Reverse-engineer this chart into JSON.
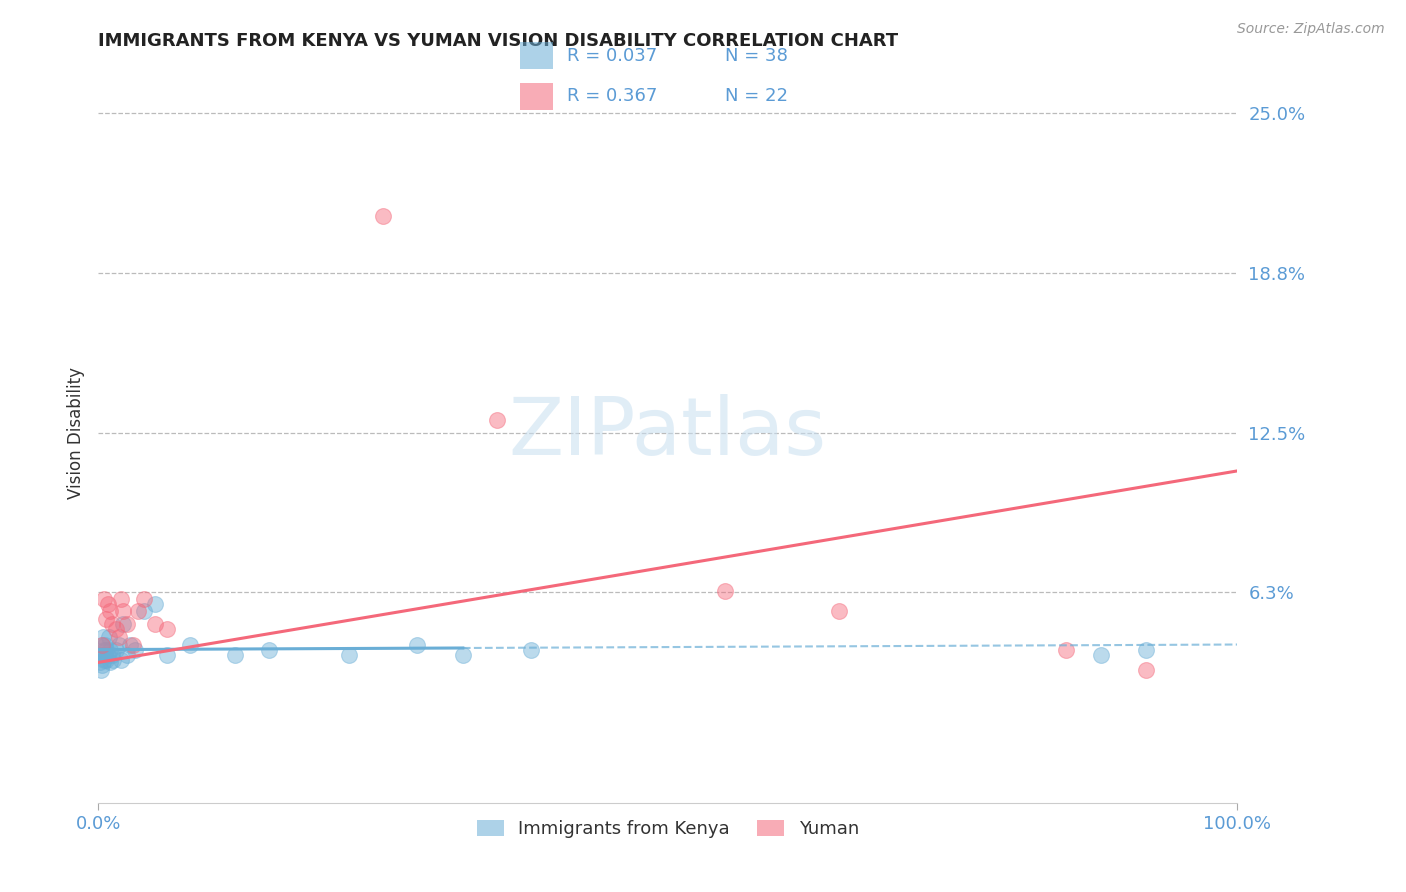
{
  "title": "IMMIGRANTS FROM KENYA VS YUMAN VISION DISABILITY CORRELATION CHART",
  "source": "Source: ZipAtlas.com",
  "ylabel": "Vision Disability",
  "legend_label1": "Immigrants from Kenya",
  "legend_label2": "Yuman",
  "legend_r1": "R = 0.037",
  "legend_n1": "N = 38",
  "legend_r2": "R = 0.367",
  "legend_n2": "N = 22",
  "ytick_vals": [
    0.0,
    0.0625,
    0.125,
    0.1875,
    0.25
  ],
  "ytick_labels": [
    "",
    "6.3%",
    "12.5%",
    "18.8%",
    "25.0%"
  ],
  "xlim": [
    0.0,
    1.0
  ],
  "ylim": [
    -0.02,
    0.27
  ],
  "color_blue": "#6aaed6",
  "color_pink": "#f4687a",
  "color_title": "#222222",
  "color_axis_blue": "#5b9bd5",
  "color_grid": "#bbbbbb",
  "background_color": "#ffffff",
  "kenya_x": [
    0.001,
    0.002,
    0.002,
    0.003,
    0.003,
    0.004,
    0.004,
    0.005,
    0.005,
    0.006,
    0.006,
    0.007,
    0.007,
    0.008,
    0.009,
    0.01,
    0.01,
    0.012,
    0.013,
    0.015,
    0.018,
    0.02,
    0.022,
    0.025,
    0.028,
    0.032,
    0.04,
    0.05,
    0.06,
    0.08,
    0.12,
    0.15,
    0.22,
    0.28,
    0.32,
    0.38,
    0.88,
    0.92
  ],
  "kenya_y": [
    0.035,
    0.032,
    0.038,
    0.034,
    0.042,
    0.038,
    0.045,
    0.036,
    0.04,
    0.038,
    0.042,
    0.036,
    0.04,
    0.038,
    0.045,
    0.035,
    0.04,
    0.038,
    0.036,
    0.04,
    0.042,
    0.036,
    0.05,
    0.038,
    0.042,
    0.04,
    0.055,
    0.058,
    0.038,
    0.042,
    0.038,
    0.04,
    0.038,
    0.042,
    0.038,
    0.04,
    0.038,
    0.04
  ],
  "yuman_x": [
    0.003,
    0.005,
    0.007,
    0.008,
    0.01,
    0.012,
    0.015,
    0.018,
    0.02,
    0.022,
    0.025,
    0.03,
    0.035,
    0.04,
    0.05,
    0.06,
    0.25,
    0.35,
    0.55,
    0.65,
    0.85,
    0.92
  ],
  "yuman_y": [
    0.042,
    0.06,
    0.052,
    0.058,
    0.055,
    0.05,
    0.048,
    0.045,
    0.06,
    0.055,
    0.05,
    0.042,
    0.055,
    0.06,
    0.05,
    0.048,
    0.21,
    0.13,
    0.063,
    0.055,
    0.04,
    0.032
  ],
  "watermark_text": "ZIPatlas",
  "marker_size": 130,
  "alpha_scatter": 0.45,
  "kenya_line_x_solid_end": 0.32,
  "kenya_line_intercept": 0.04,
  "kenya_line_slope": 0.002,
  "yuman_line_intercept": 0.035,
  "yuman_line_slope": 0.075
}
